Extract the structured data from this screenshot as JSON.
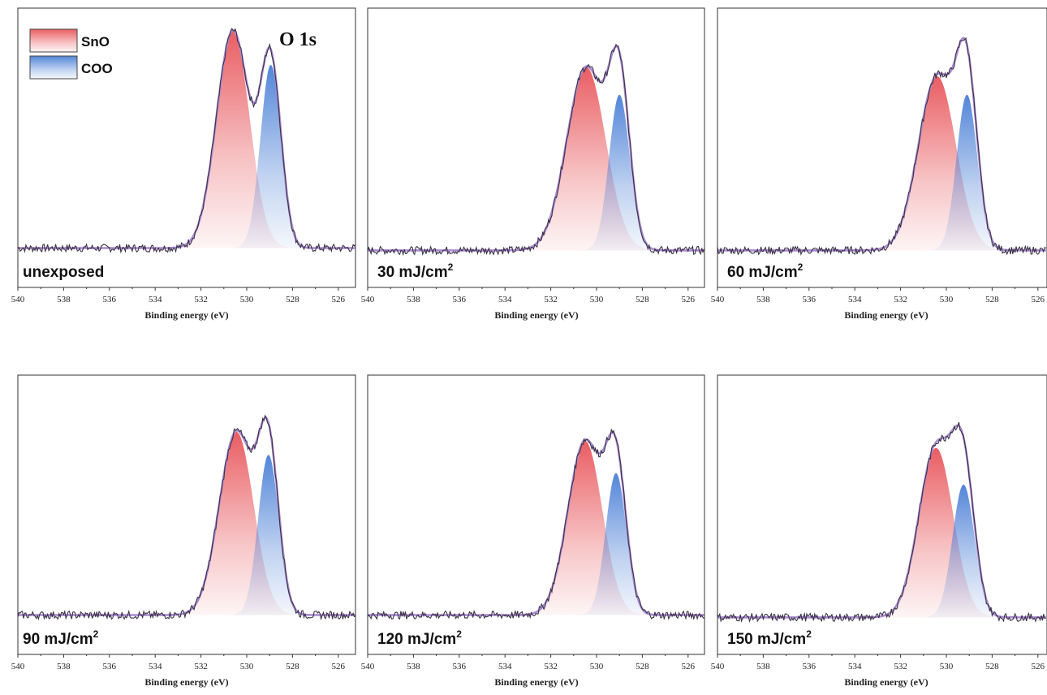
{
  "chart_data": {
    "type": "area",
    "core_level_title": "O 1s",
    "xlabel": "Binding energy (eV)",
    "x_ticks": [
      540,
      538,
      536,
      534,
      532,
      530,
      528,
      526
    ],
    "xlim": [
      540,
      525
    ],
    "x_reversed": true,
    "legend": [
      {
        "name": "SnO",
        "color": "#e8555a"
      },
      {
        "name": "COO",
        "color": "#4a7fd6"
      }
    ],
    "panels": [
      {
        "label": "unexposed",
        "label_unit_sup": "",
        "baseline": 0.03,
        "peaks": [
          {
            "name": "SnO",
            "center": 530.6,
            "height": 0.95,
            "sigma": 0.72
          },
          {
            "name": "COO",
            "center": 528.95,
            "height": 0.8,
            "sigma": 0.45
          }
        ]
      },
      {
        "label": "30 mJ/cm",
        "label_unit_sup": "2",
        "baseline": 0.02,
        "peaks": [
          {
            "name": "SnO",
            "center": 530.45,
            "height": 0.8,
            "sigma": 0.85
          },
          {
            "name": "COO",
            "center": 529.0,
            "height": 0.68,
            "sigma": 0.45
          }
        ]
      },
      {
        "label": "60 mJ/cm",
        "label_unit_sup": "2",
        "baseline": 0.02,
        "peaks": [
          {
            "name": "SnO",
            "center": 530.4,
            "height": 0.76,
            "sigma": 0.82
          },
          {
            "name": "COO",
            "center": 529.1,
            "height": 0.68,
            "sigma": 0.45
          }
        ]
      },
      {
        "label": "90 mJ/cm",
        "label_unit_sup": "2",
        "baseline": 0.03,
        "peaks": [
          {
            "name": "SnO",
            "center": 530.45,
            "height": 0.8,
            "sigma": 0.75
          },
          {
            "name": "COO",
            "center": 529.05,
            "height": 0.7,
            "sigma": 0.45
          }
        ]
      },
      {
        "label": "120 mJ/cm",
        "label_unit_sup": "2",
        "baseline": 0.03,
        "peaks": [
          {
            "name": "SnO",
            "center": 530.5,
            "height": 0.76,
            "sigma": 0.75
          },
          {
            "name": "COO",
            "center": 529.15,
            "height": 0.62,
            "sigma": 0.45
          }
        ]
      },
      {
        "label": "150 mJ/cm",
        "label_unit_sup": "2",
        "baseline": 0.02,
        "peaks": [
          {
            "name": "SnO",
            "center": 530.45,
            "height": 0.74,
            "sigma": 0.75
          },
          {
            "name": "COO",
            "center": 529.25,
            "height": 0.58,
            "sigma": 0.48
          }
        ]
      }
    ]
  }
}
